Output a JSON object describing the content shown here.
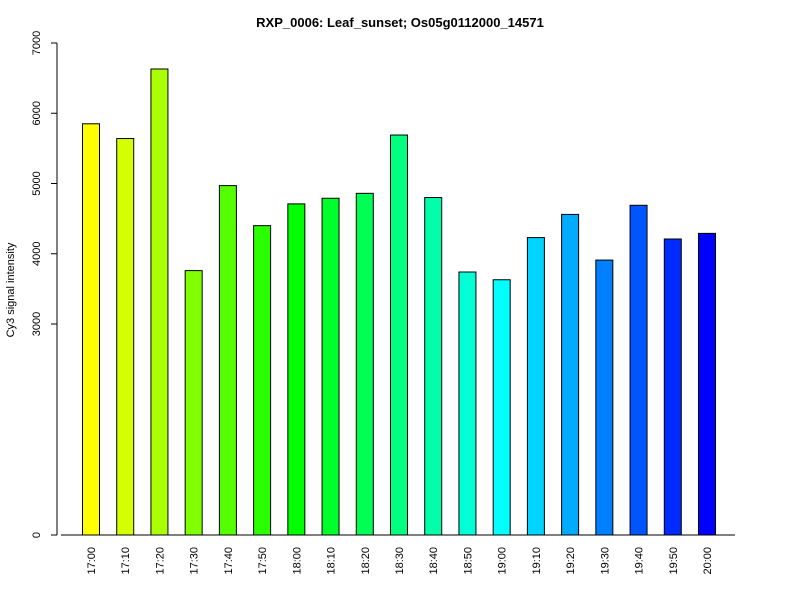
{
  "chart_data": {
    "type": "bar",
    "title": "RXP_0006: Leaf_sunset; Os05g0112000_14571",
    "xlabel": "",
    "ylabel": "Cy3 signal intensity",
    "y_ticks": [
      0,
      3000,
      4000,
      5000,
      6000,
      7000
    ],
    "y_axis_break_note": "axis compressed between 0 and 3000",
    "categories": [
      "17:00",
      "17:10",
      "17:20",
      "17:30",
      "17:40",
      "17:50",
      "18:00",
      "18:10",
      "18:20",
      "18:30",
      "18:40",
      "18:50",
      "19:00",
      "19:10",
      "19:20",
      "19:30",
      "19:40",
      "19:50",
      "20:00"
    ],
    "values": [
      5850,
      5640,
      6630,
      3760,
      4970,
      4400,
      4710,
      4790,
      4860,
      5690,
      4800,
      3740,
      3630,
      4230,
      4560,
      3910,
      4690,
      4210,
      4290
    ],
    "colors": [
      "#FFFF00",
      "#D4FF00",
      "#AAFF00",
      "#7FFF00",
      "#55FF00",
      "#2AFF00",
      "#00FF00",
      "#00FF2A",
      "#00FF55",
      "#00FF7F",
      "#00FFAA",
      "#00FFD4",
      "#00FFFF",
      "#00D4FF",
      "#00AAFF",
      "#007FFF",
      "#0055FF",
      "#002AFF",
      "#0000FF"
    ]
  }
}
